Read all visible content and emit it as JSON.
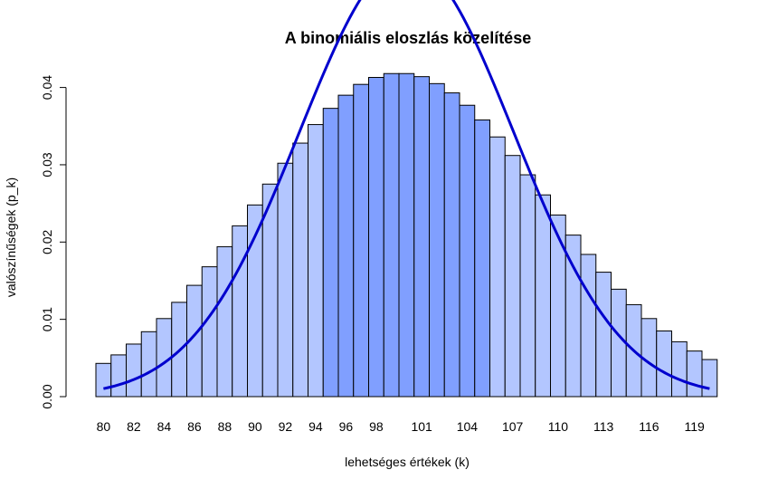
{
  "chart_data": {
    "type": "bar",
    "title": "A binomiális eloszlás közelítése",
    "xlabel": "lehetséges értékek (k)",
    "ylabel": "valószínűségek (p_k)",
    "x": [
      80,
      81,
      82,
      83,
      84,
      85,
      86,
      87,
      88,
      89,
      90,
      91,
      92,
      93,
      94,
      95,
      96,
      97,
      98,
      99,
      100,
      101,
      102,
      103,
      104,
      105,
      106,
      107,
      108,
      109,
      110,
      111,
      112,
      113,
      114,
      115,
      116,
      117,
      118,
      119,
      120
    ],
    "values": [
      0.0043,
      0.0054,
      0.0068,
      0.0084,
      0.0101,
      0.0122,
      0.0144,
      0.0168,
      0.0194,
      0.0221,
      0.0248,
      0.0275,
      0.0302,
      0.0328,
      0.0352,
      0.0373,
      0.039,
      0.0404,
      0.0413,
      0.0418,
      0.0418,
      0.0414,
      0.0405,
      0.0393,
      0.0377,
      0.0358,
      0.0336,
      0.0312,
      0.0287,
      0.0261,
      0.0235,
      0.0209,
      0.0184,
      0.0161,
      0.0139,
      0.0119,
      0.0101,
      0.0085,
      0.0071,
      0.0059,
      0.0048
    ],
    "highlight_range": [
      95,
      105
    ],
    "x_ticks": [
      "80",
      "82",
      "84",
      "86",
      "88",
      "90",
      "92",
      "94",
      "96",
      "98",
      "101",
      "104",
      "107",
      "110",
      "113",
      "116",
      "119"
    ],
    "y_ticks": [
      "0.00",
      "0.01",
      "0.02",
      "0.03",
      "0.04"
    ],
    "ylim": [
      0,
      0.042
    ],
    "overlay_curve": "normal approximation",
    "colors": {
      "bar_fill": "#b3c6ff",
      "bar_highlight_fill": "#809fff",
      "bar_stroke": "#000000",
      "curve": "#0000cd"
    }
  }
}
